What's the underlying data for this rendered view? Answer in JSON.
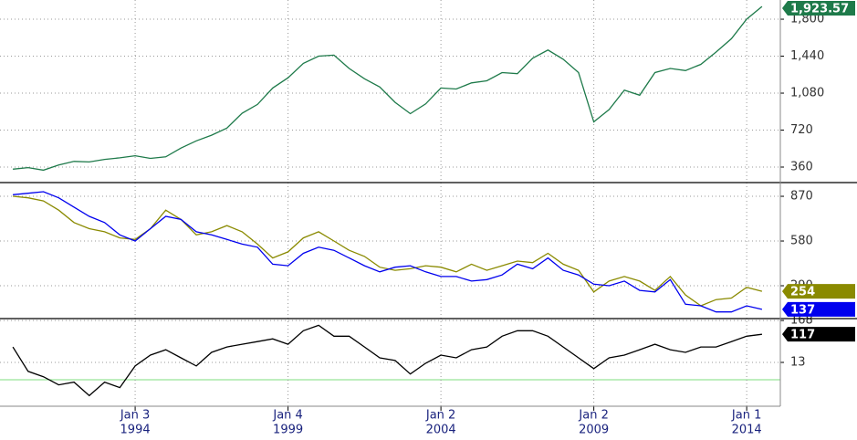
{
  "chart_data": {
    "type": "line",
    "x": [
      1990,
      1990.5,
      1991,
      1991.5,
      1992,
      1992.5,
      1993,
      1993.5,
      1994,
      1994.5,
      1995,
      1995.5,
      1996,
      1996.5,
      1997,
      1997.5,
      1998,
      1998.5,
      1999,
      1999.5,
      2000,
      2000.5,
      2001,
      2001.5,
      2002,
      2002.5,
      2003,
      2003.5,
      2004,
      2004.5,
      2005,
      2005.5,
      2006,
      2006.5,
      2007,
      2007.5,
      2008,
      2008.5,
      2009,
      2009.5,
      2010,
      2010.5,
      2011,
      2011.5,
      2012,
      2012.5,
      2013,
      2013.5,
      2014,
      2014.5
    ],
    "xlim": [
      1989.58,
      2015.1
    ],
    "xticks": [
      {
        "value": 1994,
        "label": "Jan 3"
      },
      {
        "value": 1999,
        "label": "Jan 4"
      },
      {
        "value": 2004,
        "label": "Jan 2"
      },
      {
        "value": 2009,
        "label": "Jan 2"
      },
      {
        "value": 2014,
        "label": "Jan 1"
      }
    ],
    "xtick_years": [
      "1994",
      "1999",
      "2004",
      "2009",
      "2014"
    ],
    "grid": true,
    "panels": [
      {
        "ylim": [
          209,
          1987
        ],
        "yticks": [
          {
            "value": 360,
            "label": "360"
          },
          {
            "value": 720,
            "label": "720"
          },
          {
            "value": 1080,
            "label": "1,080"
          },
          {
            "value": 1440,
            "label": "1,440"
          },
          {
            "value": 1800,
            "label": "1,800"
          }
        ],
        "series": [
          {
            "color": "#1e7a4a",
            "last_value_label": "1,923.57",
            "values": [
              340,
              355,
              330,
              380,
              415,
              410,
              435,
              450,
              470,
              445,
              460,
              545,
              615,
              670,
              740,
              885,
              970,
              1130,
              1230,
              1370,
              1440,
              1450,
              1320,
              1220,
              1140,
              990,
              880,
              975,
              1130,
              1120,
              1180,
              1200,
              1280,
              1270,
              1420,
              1500,
              1410,
              1280,
              800,
              920,
              1110,
              1060,
              1280,
              1320,
              1300,
              1360,
              1480,
              1610,
              1800,
              1923.57
            ]
          }
        ]
      },
      {
        "ylim": [
          77,
          959
        ],
        "yticks": [
          290,
          580,
          870
        ],
        "series": [
          {
            "color": "#8a8a00",
            "values": [
              870,
              860,
              840,
              780,
              700,
              660,
              640,
              600,
              590,
              660,
              780,
              720,
              620,
              640,
              680,
              640,
              560,
              470,
              510,
              600,
              640,
              580,
              520,
              480,
              410,
              390,
              400,
              420,
              410,
              380,
              430,
              390,
              420,
              450,
              440,
              500,
              430,
              390,
              250,
              320,
              350,
              320,
              260,
              350,
              230,
              160,
              200,
              210,
              280,
              254
            ]
          },
          {
            "color": "#0000ee",
            "values": [
              880,
              890,
              900,
              860,
              800,
              740,
              700,
              620,
              580,
              660,
              740,
              720,
              640,
              620,
              590,
              560,
              540,
              430,
              420,
              500,
              540,
              520,
              470,
              420,
              380,
              410,
              420,
              380,
              350,
              350,
              320,
              330,
              360,
              430,
              400,
              470,
              390,
              360,
              300,
              290,
              320,
              260,
              250,
              330,
              170,
              160,
              120,
              120,
              160,
              137
            ]
          }
        ]
      },
      {
        "ylim": [
          -149,
          175
        ],
        "yticks": [
          13,
          168
        ],
        "series": [
          {
            "color": "#000000",
            "values": [
              70,
              -20,
              -40,
              -70,
              -60,
              -110,
              -60,
              -80,
              0,
              40,
              60,
              30,
              0,
              50,
              70,
              80,
              90,
              100,
              80,
              130,
              150,
              110,
              110,
              70,
              30,
              20,
              -30,
              10,
              40,
              30,
              60,
              70,
              110,
              130,
              130,
              110,
              70,
              30,
              -10,
              30,
              40,
              60,
              80,
              60,
              50,
              70,
              70,
              90,
              110,
              117
            ]
          }
        ]
      }
    ]
  }
}
